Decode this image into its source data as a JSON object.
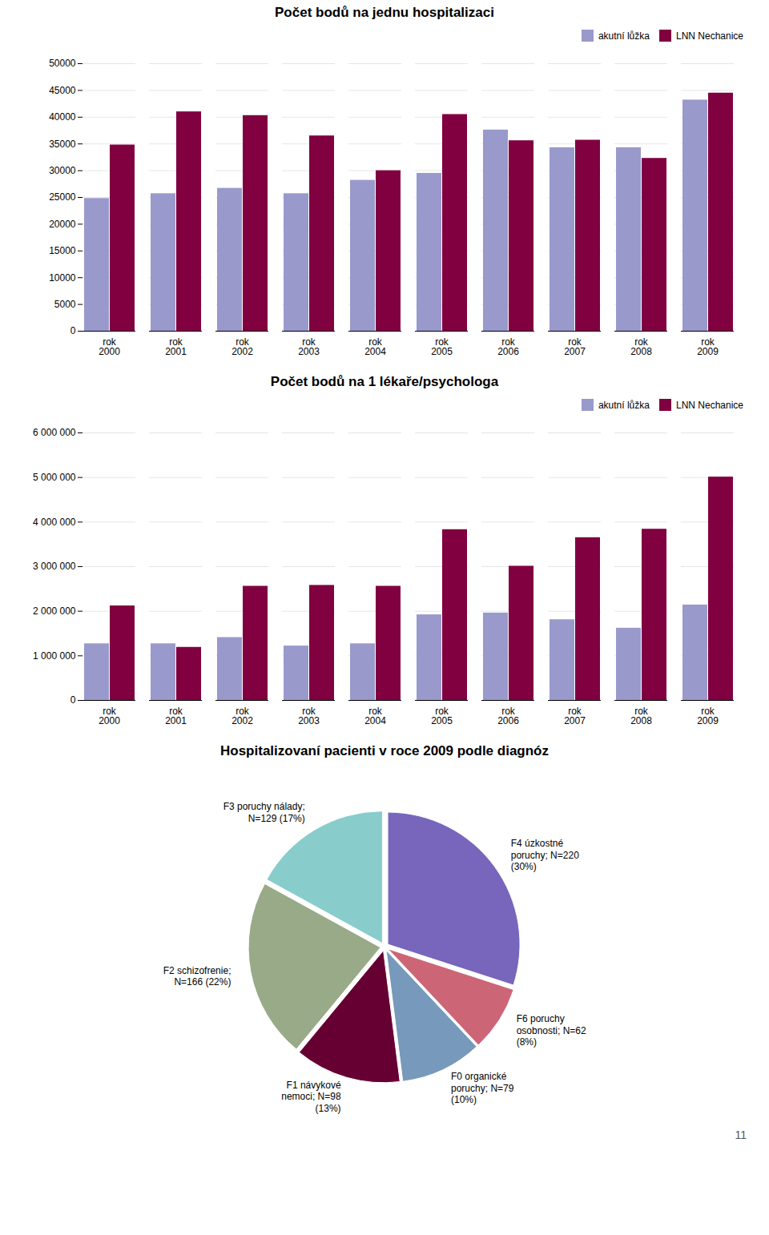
{
  "chart_data": [
    {
      "type": "bar",
      "title": "Počet bodů na jednu hospitalizaci",
      "categories": [
        "rok\n2000",
        "rok\n2001",
        "rok\n2002",
        "rok\n2003",
        "rok\n2004",
        "rok\n2005",
        "rok\n2006",
        "rok\n2007",
        "rok\n2008",
        "rok\n2009"
      ],
      "series": [
        {
          "name": "akutní lůžka",
          "color": "#9999CC",
          "values": [
            24800,
            25700,
            26700,
            25700,
            28200,
            29500,
            37600,
            34300,
            34300,
            43200
          ]
        },
        {
          "name": "LNN Nechanice",
          "color": "#800040",
          "values": [
            34800,
            41000,
            40300,
            36500,
            30000,
            40500,
            35600,
            35700,
            32300,
            44500
          ]
        }
      ],
      "ylim": [
        0,
        50000
      ],
      "yticks": [
        0,
        5000,
        10000,
        15000,
        20000,
        25000,
        30000,
        35000,
        40000,
        45000,
        50000
      ],
      "grid": true,
      "legend": "upper right"
    },
    {
      "type": "bar",
      "title": "Počet bodů na 1 lékaře/psychologa",
      "categories": [
        "rok\n2000",
        "rok\n2001",
        "rok\n2002",
        "rok\n2003",
        "rok\n2004",
        "rok\n2005",
        "rok\n2006",
        "rok\n2007",
        "rok\n2008",
        "rok\n2009"
      ],
      "series": [
        {
          "name": "akutní lůžka",
          "color": "#9999CC",
          "values": [
            1270000,
            1270000,
            1410000,
            1220000,
            1270000,
            1920000,
            1960000,
            1810000,
            1620000,
            2140000
          ]
        },
        {
          "name": "LNN Nechanice",
          "color": "#800040",
          "values": [
            2120000,
            1190000,
            2560000,
            2580000,
            2560000,
            3830000,
            3010000,
            3650000,
            3840000,
            5010000
          ]
        }
      ],
      "ylim": [
        0,
        6000000
      ],
      "yticks": [
        0,
        {
          "value": 1000000,
          "label": "1 000 000"
        },
        {
          "value": 2000000,
          "label": "2 000 000"
        },
        {
          "value": 3000000,
          "label": "3 000 000"
        },
        {
          "value": 4000000,
          "label": "4 000 000"
        },
        {
          "value": 5000000,
          "label": "5 000 000"
        },
        {
          "value": 6000000,
          "label": "6 000 000"
        }
      ],
      "grid": true,
      "legend": "upper right"
    },
    {
      "type": "pie",
      "title": "Hospitalizovaní pacienti v roce 2009 podle diagnóz",
      "categories": [
        "F4 úzkostné\nporuchy; N=220\n(30%)",
        "F6 poruchy\nosobnosti; N=62\n(8%)",
        "F0 organické\nporuchy; N=79\n(10%)",
        "F1 návykové\nnemoci; N=98\n(13%)",
        "F2 schizofrenie;\nN=166 (22%)",
        "F3 poruchy nálady;\nN=129 (17%)"
      ],
      "values": [
        30,
        8,
        10,
        13,
        22,
        17
      ],
      "colors": [
        "#7766BB",
        "#CC6677",
        "#7799BB",
        "#660033",
        "#99AA88",
        "#88CCCC"
      ],
      "annotations": [
        "11"
      ]
    }
  ]
}
